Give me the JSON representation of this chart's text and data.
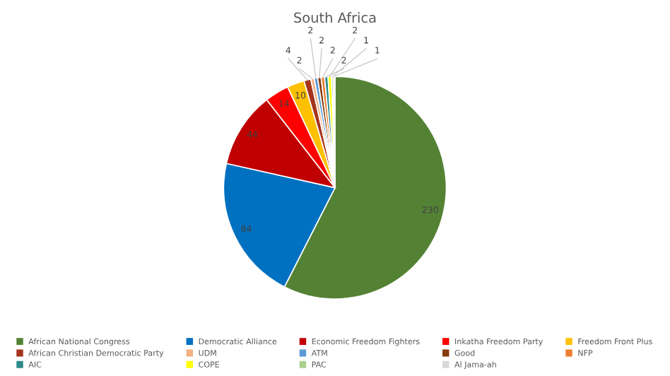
{
  "chart_data": {
    "type": "pie",
    "title": "South Africa",
    "categories": [
      "African National Congress",
      "Democratic Alliance",
      "Economic Freedom Fighters",
      "Inkatha Freedom Party",
      "Freedom Front Plus",
      "African Christian Democratic Party",
      "UDM",
      "ATM",
      "Good",
      "NFP",
      "AIC",
      "COPE",
      "PAC",
      "Al Jama-ah"
    ],
    "values": [
      230,
      84,
      44,
      14,
      10,
      4,
      2,
      2,
      2,
      2,
      2,
      2,
      1,
      1
    ],
    "colors": [
      "#548235",
      "#0070c0",
      "#c00000",
      "#ff0000",
      "#ffc000",
      "#a5341d",
      "#f4b183",
      "#5b9bd5",
      "#843c0c",
      "#ed7d31",
      "#2e8b8b",
      "#ffff00",
      "#a9d18e",
      "#d9d9d9"
    ],
    "data_labels": true,
    "legend": "bottom"
  }
}
